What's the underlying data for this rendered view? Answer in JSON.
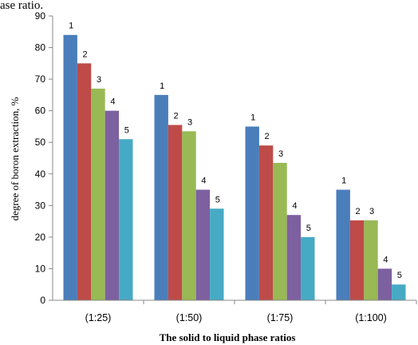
{
  "caption_fragment": "ase ratio.",
  "chart_data": {
    "type": "bar",
    "title": "",
    "xlabel": "The solid to liquid phase ratios",
    "ylabel": "degree of boron extraction, %",
    "ylim": [
      0,
      90
    ],
    "yticks": [
      0,
      10,
      20,
      30,
      40,
      50,
      60,
      70,
      80,
      90
    ],
    "grid": false,
    "legend": "none",
    "categories": [
      "(1:25)",
      "(1:50)",
      "(1:75)",
      "(1:100)"
    ],
    "series": [
      {
        "label": "1",
        "color": "#4a7ebb",
        "values": [
          84,
          65,
          55,
          35
        ]
      },
      {
        "label": "2",
        "color": "#be4b48",
        "values": [
          75,
          55.5,
          49,
          25.3
        ]
      },
      {
        "label": "3",
        "color": "#98b954",
        "values": [
          67,
          53.5,
          43.5,
          25.3
        ]
      },
      {
        "label": "4",
        "color": "#7d60a0",
        "values": [
          60,
          35,
          27,
          10
        ]
      },
      {
        "label": "5",
        "color": "#46aac5",
        "values": [
          51,
          29,
          20,
          5
        ]
      }
    ]
  }
}
